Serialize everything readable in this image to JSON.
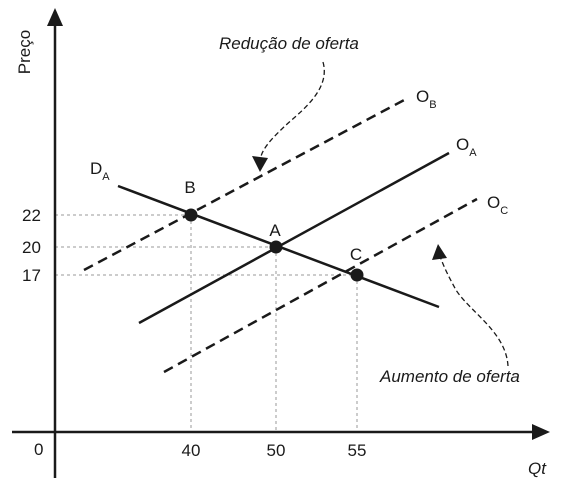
{
  "axes": {
    "y_label": "Preço",
    "x_label": "Qt",
    "origin_label": "0"
  },
  "y_ticks": [
    "22",
    "20",
    "17"
  ],
  "x_ticks": [
    "40",
    "50",
    "55"
  ],
  "lines": {
    "demand": {
      "main": "D",
      "sub": "A"
    },
    "supply_a": {
      "main": "O",
      "sub": "A"
    },
    "supply_b": {
      "main": "O",
      "sub": "B"
    },
    "supply_c": {
      "main": "O",
      "sub": "C"
    }
  },
  "points": {
    "a": "A",
    "b": "B",
    "c": "C"
  },
  "annotations": {
    "reduction": "Redução de oferta",
    "increase": "Aumento de oferta"
  },
  "colors": {
    "ink": "#1a1a1a",
    "guide": "#9a9a9a"
  }
}
